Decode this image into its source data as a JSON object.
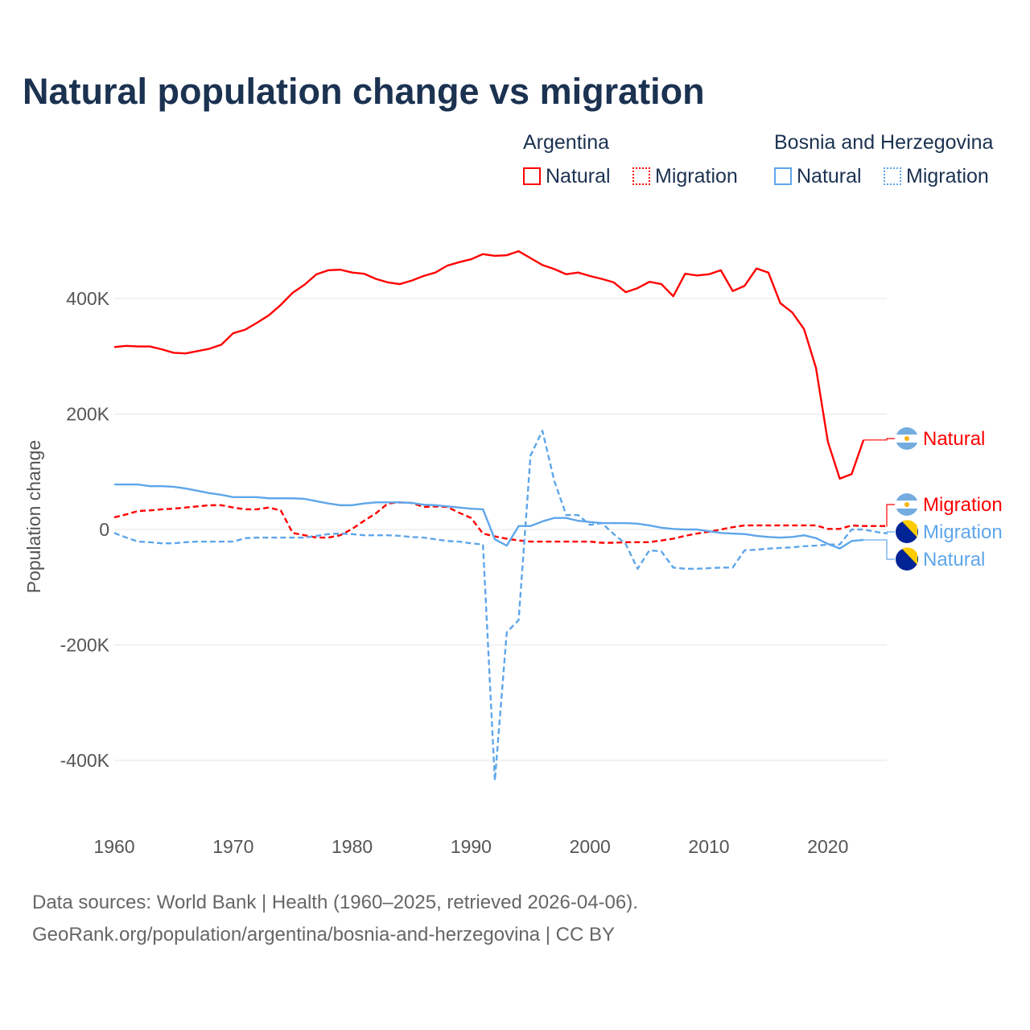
{
  "chart_data": {
    "type": "line",
    "title": "Natural population change vs migration",
    "ylabel": "Population change",
    "xlabel": "",
    "ylim": [
      -500000,
      500000
    ],
    "xlim": [
      1960,
      2025
    ],
    "yticks": [
      {
        "v": 400000,
        "l": "400K"
      },
      {
        "v": 200000,
        "l": "200K"
      },
      {
        "v": 0,
        "l": "0"
      },
      {
        "v": -200000,
        "l": "-200K"
      },
      {
        "v": -400000,
        "l": "-400K"
      }
    ],
    "xticks": [
      1960,
      1970,
      1980,
      1990,
      2000,
      2010,
      2020
    ],
    "legend": {
      "groups": [
        {
          "name": "Argentina",
          "items": [
            "Natural",
            "Migration"
          ]
        },
        {
          "name": "Bosnia and Herzegovina",
          "items": [
            "Natural",
            "Migration"
          ]
        }
      ]
    },
    "series": [
      {
        "name": "Argentina Natural",
        "label": "Natural",
        "color": "#ff0000",
        "dash": false,
        "start": 1960,
        "values": [
          316,
          318,
          317,
          317,
          312,
          306,
          305,
          309,
          313,
          320,
          340,
          346,
          358,
          371,
          389,
          410,
          424,
          442,
          449,
          450,
          445,
          443,
          434,
          428,
          425,
          431,
          439,
          445,
          457,
          463,
          468,
          477,
          474,
          475,
          482,
          470,
          458,
          451,
          442,
          445,
          439,
          434,
          428,
          411,
          418,
          429,
          425,
          404,
          443,
          440,
          442,
          449,
          413,
          422,
          452,
          445,
          392,
          376,
          347,
          280,
          152,
          88,
          96,
          155
        ]
      },
      {
        "name": "Argentina Migration",
        "label": "Migration",
        "color": "#ff0000",
        "dash": true,
        "start": 1960,
        "values": [
          21,
          26,
          32,
          33,
          35,
          36,
          38,
          40,
          42,
          42,
          38,
          35,
          35,
          38,
          33,
          -6,
          -10,
          -14,
          -14,
          -10,
          1,
          15,
          28,
          45,
          47,
          46,
          39,
          40,
          39,
          29,
          20,
          -7,
          -12,
          -16,
          -19,
          -21,
          -21,
          -21,
          -21,
          -21,
          -21,
          -23,
          -23,
          -22,
          -22,
          -22,
          -19,
          -16,
          -11,
          -7,
          -4,
          0,
          4,
          7,
          7,
          7,
          7,
          7,
          7,
          7,
          1,
          1,
          7,
          6,
          6,
          6
        ]
      },
      {
        "name": "Bosnia and Herzegovina Migration",
        "label": "Migration",
        "color": "#5ea6ea",
        "dash": true,
        "start": 1960,
        "values": [
          -6,
          -14,
          -21,
          -22,
          -24,
          -24,
          -22,
          -21,
          -21,
          -21,
          -21,
          -15,
          -14,
          -14,
          -14,
          -14,
          -14,
          -11,
          -8,
          -7,
          -8,
          -10,
          -10,
          -10,
          -11,
          -13,
          -14,
          -17,
          -20,
          -21,
          -24,
          -26,
          -435,
          -178,
          -157,
          128,
          171,
          84,
          25,
          25,
          8,
          11,
          -8,
          -25,
          -68,
          -36,
          -38,
          -66,
          -68,
          -68,
          -67,
          -66,
          -66,
          -36,
          -35,
          -33,
          -32,
          -31,
          -29,
          -28,
          -26,
          -26,
          0,
          0,
          -4,
          -7
        ]
      },
      {
        "name": "Bosnia and Herzegovina Natural",
        "label": "Natural",
        "color": "#5ea6ea",
        "dash": false,
        "start": 1960,
        "values": [
          78,
          78,
          78,
          75,
          75,
          74,
          71,
          67,
          63,
          60,
          56,
          56,
          56,
          54,
          54,
          54,
          53,
          49,
          45,
          42,
          42,
          45,
          47,
          47,
          47,
          46,
          43,
          42,
          40,
          38,
          36,
          35,
          -17,
          -28,
          6,
          6,
          14,
          20,
          20,
          15,
          13,
          11,
          11,
          11,
          10,
          7,
          3,
          1,
          0,
          0,
          -3,
          -6,
          -7,
          -8,
          -11,
          -13,
          -14,
          -13,
          -10,
          -15,
          -25,
          -33,
          -20,
          -18
        ]
      }
    ],
    "value_unit": "thousands"
  },
  "source": {
    "line1": "Data sources: World Bank | Health (1960–2025, retrieved 2026-04-06).",
    "line2": "GeoRank.org/population/argentina/bosnia-and-herzegovina | CC BY"
  }
}
